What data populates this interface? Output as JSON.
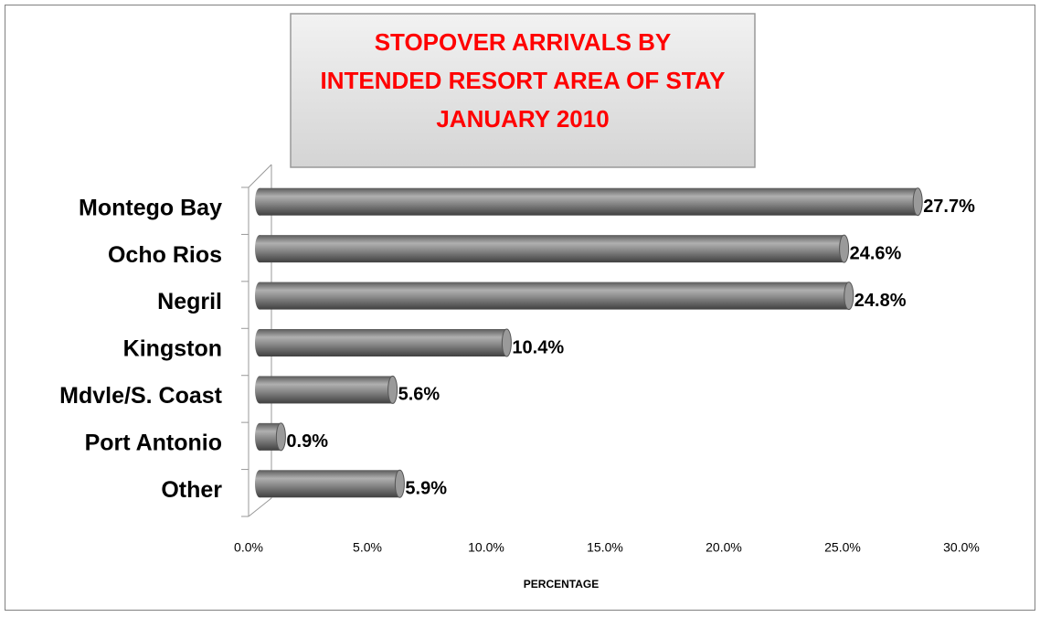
{
  "chart_data": {
    "type": "bar",
    "orientation": "horizontal",
    "title": [
      "STOPOVER ARRIVALS BY",
      "INTENDED RESORT AREA OF STAY",
      "JANUARY  2010"
    ],
    "x_label": "PERCENTAGE",
    "categories": [
      "Montego Bay",
      "Ocho Rios",
      "Negril",
      "Kingston",
      "Mdvle/S. Coast",
      "Port Antonio",
      "Other"
    ],
    "values": [
      27.7,
      24.6,
      24.8,
      10.4,
      5.6,
      0.9,
      5.9
    ],
    "value_labels": [
      "27.7%",
      "24.6%",
      "24.8%",
      "10.4%",
      "5.6%",
      "0.9%",
      "5.9%"
    ],
    "color": "#808080",
    "xlim": [
      0,
      30
    ],
    "xticks": [
      {
        "value": 0,
        "label": "0.0%"
      },
      {
        "value": 5,
        "label": "5.0%"
      },
      {
        "value": 10,
        "label": "10.0%"
      },
      {
        "value": 15,
        "label": "15.0%"
      },
      {
        "value": 20,
        "label": "20.0%"
      },
      {
        "value": 25,
        "label": "25.0%"
      },
      {
        "value": 30,
        "label": "30.0%"
      }
    ],
    "grid": false
  }
}
